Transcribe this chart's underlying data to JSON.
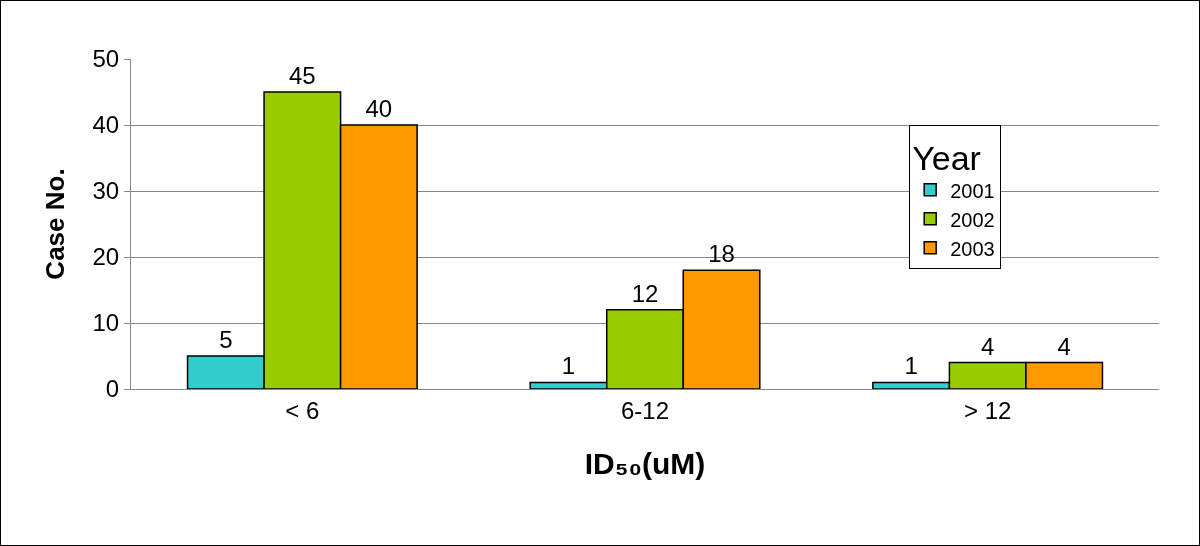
{
  "chart_data": {
    "type": "bar",
    "xlabel": "ID₅₀(uM)",
    "ylabel": "Case No.",
    "legend_title": "Year",
    "categories": [
      "< 6",
      "6-12",
      "> 12"
    ],
    "series": [
      {
        "name": "2001",
        "color": "#33cccc",
        "values": [
          5,
          1,
          1
        ]
      },
      {
        "name": "2002",
        "color": "#99cc00",
        "values": [
          45,
          12,
          4
        ]
      },
      {
        "name": "2003",
        "color": "#ff9900",
        "values": [
          40,
          18,
          4
        ]
      }
    ],
    "ylim": [
      0,
      50
    ],
    "yticks": [
      0,
      10,
      20,
      30,
      40,
      50
    ],
    "grid": "y",
    "legend": "top right",
    "data_labels": true
  }
}
